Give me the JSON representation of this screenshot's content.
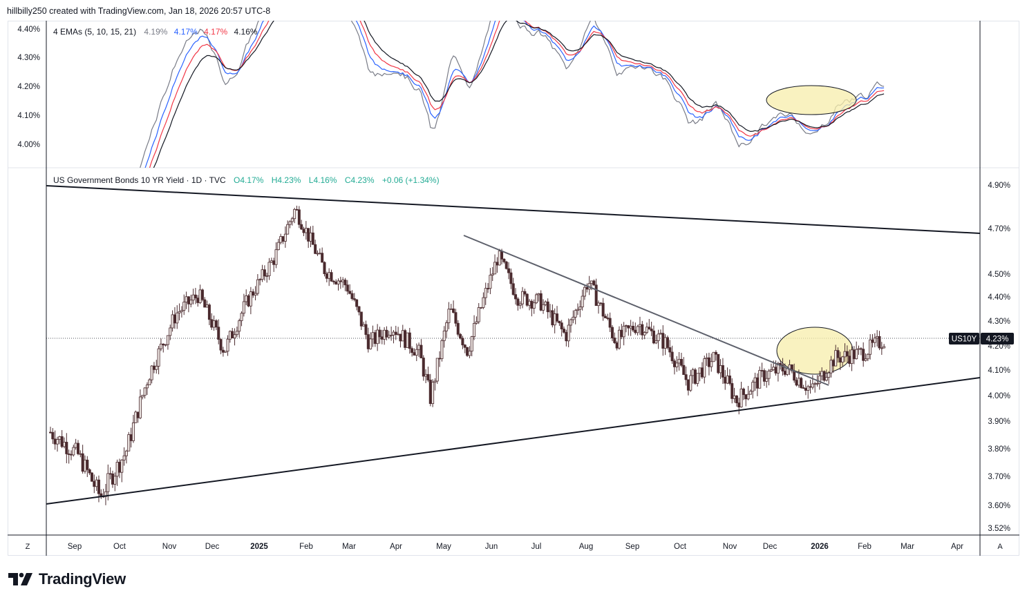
{
  "header": {
    "text": "hillbilly250 created with TradingView.com, Jan 18, 2026 20:57 UTC-8"
  },
  "ema_pane": {
    "legend_name": "4 EMAs (5, 10, 15, 21)",
    "values": [
      {
        "value": "4.19%",
        "color": "#787b86"
      },
      {
        "value": "4.17%",
        "color": "#2962ff"
      },
      {
        "value": "4.17%",
        "color": "#f23645"
      },
      {
        "value": "4.16%",
        "color": "#131722"
      }
    ],
    "y_ticks": [
      "4.40%",
      "4.30%",
      "4.20%",
      "4.10%",
      "4.00%"
    ]
  },
  "price_pane": {
    "legend_title": "US Government Bonds 10 YR Yield · 1D · TVC",
    "ohlc": {
      "o": "O4.17%",
      "h": "H4.23%",
      "l": "L4.16%",
      "c": "C4.23%",
      "chg": "+0.06 (+1.34%)"
    },
    "y_ticks": [
      "4.90%",
      "4.70%",
      "4.50%",
      "4.40%",
      "4.30%",
      "4.20%",
      "4.10%",
      "4.00%",
      "3.90%",
      "3.80%",
      "3.70%",
      "3.60%",
      "3.52%"
    ],
    "symbol": "US10Y",
    "last_price": "4.23%"
  },
  "x_axis": {
    "labels": [
      "Sep",
      "Oct",
      "Nov",
      "Dec",
      "2025",
      "Feb",
      "Mar",
      "Apr",
      "May",
      "Jun",
      "Jul",
      "Aug",
      "Sep",
      "Oct",
      "Nov",
      "Dec",
      "2026",
      "Feb",
      "Mar",
      "Apr"
    ],
    "bold": [
      "2025",
      "2026"
    ],
    "left_button": "Z",
    "right_button": "A"
  },
  "logo": {
    "text": "TradingView"
  },
  "chart_data": {
    "type": "candlestick",
    "symbol": "US10Y",
    "interval": "1D",
    "dates": [
      "2024-08-15",
      "2024-09-01",
      "2024-09-15",
      "2024-10-01",
      "2024-10-15",
      "2024-11-01",
      "2024-11-15",
      "2024-12-01",
      "2024-12-15",
      "2025-01-01",
      "2025-01-14",
      "2025-02-01",
      "2025-02-15",
      "2025-03-01",
      "2025-03-15",
      "2025-04-01",
      "2025-04-08",
      "2025-04-20",
      "2025-05-01",
      "2025-05-20",
      "2025-06-01",
      "2025-06-15",
      "2025-07-01",
      "2025-07-15",
      "2025-08-01",
      "2025-08-15",
      "2025-09-01",
      "2025-09-15",
      "2025-10-01",
      "2025-10-15",
      "2025-11-01",
      "2025-11-15",
      "2025-12-01",
      "2025-12-15",
      "2026-01-01",
      "2026-01-16"
    ],
    "close": [
      3.86,
      3.78,
      3.63,
      3.79,
      4.08,
      4.33,
      4.41,
      4.18,
      4.38,
      4.57,
      4.79,
      4.52,
      4.45,
      4.21,
      4.28,
      4.17,
      3.99,
      4.35,
      4.18,
      4.58,
      4.4,
      4.38,
      4.24,
      4.47,
      4.22,
      4.29,
      4.21,
      4.05,
      4.15,
      3.98,
      4.08,
      4.11,
      4.02,
      4.15,
      4.17,
      4.23
    ],
    "ema_series": [
      "EMA 5",
      "EMA 10",
      "EMA 15",
      "EMA 21"
    ],
    "ylim": [
      3.52,
      4.95
    ],
    "trendlines": [
      {
        "from": [
          "2024-08-01",
          4.91
        ],
        "to": [
          "2026-04-30",
          4.69
        ]
      },
      {
        "from": [
          "2024-08-01",
          3.61
        ],
        "to": [
          "2026-04-30",
          4.07
        ]
      },
      {
        "from": [
          "2025-05-15",
          4.67
        ],
        "to": [
          "2025-12-31",
          4.04
        ]
      }
    ],
    "annotation": "highlight ellipse around consolidation Dec 2025 – Jan 2026",
    "grid": false
  }
}
